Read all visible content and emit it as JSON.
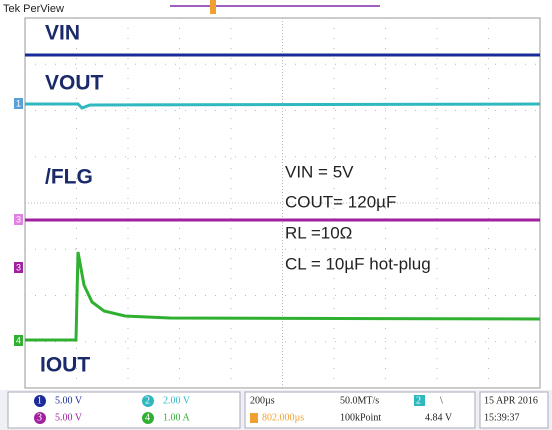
{
  "header": {
    "title": "Tek PerView"
  },
  "traces": {
    "vin": "VIN",
    "vout": "VOUT",
    "flg": "/FLG",
    "iout": "IOUT"
  },
  "markers": [
    "1",
    "3",
    "3",
    "4"
  ],
  "notes": [
    "VIN = 5V",
    "COUT= 120µF",
    "RL =10Ω",
    "CL = 10µF hot-plug"
  ],
  "status": {
    "channels": [
      {
        "id": "1",
        "scale": "5.00 V"
      },
      {
        "id": "2",
        "scale": "2.00 V"
      },
      {
        "id": "3",
        "scale": "5.00 V"
      },
      {
        "id": "4",
        "scale": "1.00 A"
      }
    ],
    "timebase": "200µs",
    "sample_rate": "50.0MT/s",
    "trigger_channel": "2",
    "trigger_slope": "\\",
    "position": "802.000µs",
    "record_length": "100kPoint",
    "trigger_level": "4.84 V",
    "date": "15 APR 2016",
    "time": "15:39:37"
  }
}
